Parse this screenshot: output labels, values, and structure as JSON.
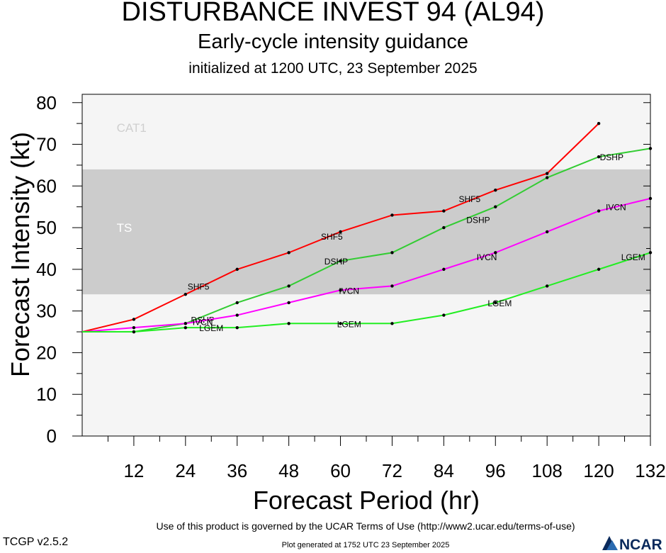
{
  "header": {
    "title": "DISTURBANCE INVEST 94 (AL94)",
    "subtitle": "Early-cycle intensity guidance",
    "initialized": "initialized at 1200 UTC, 23 September 2025"
  },
  "footer": {
    "terms": "Use of this product is governed by the UCAR Terms of Use (http://www2.ucar.edu/terms-of-use)",
    "version": "TCGP v2.5.2",
    "generated": "Plot generated at 1752 UTC   23 September 2025",
    "logo_text": "NCAR"
  },
  "chart_data": {
    "type": "line",
    "xlabel": "Forecast Period (hr)",
    "ylabel": "Forecast Intensity (kt)",
    "xlim": [
      0,
      132
    ],
    "ylim": [
      0,
      82
    ],
    "xticks": [
      12,
      24,
      36,
      48,
      60,
      72,
      84,
      96,
      108,
      120,
      132
    ],
    "yticks": [
      0,
      10,
      20,
      30,
      40,
      50,
      60,
      70,
      80
    ],
    "bands": [
      {
        "label": "TS",
        "from": 34,
        "to": 64,
        "color": "#cccccc",
        "label_x": 8,
        "label_y": 49
      },
      {
        "label": "CAT1",
        "from": 64,
        "to": 82,
        "color": "#f5f5f5",
        "label_x": 8,
        "label_y": 73
      }
    ],
    "below_band_color": "#f5f5f5",
    "series": [
      {
        "name": "SHF5",
        "color": "#ff0000",
        "x": [
          0,
          12,
          24,
          36,
          48,
          60,
          72,
          84,
          96,
          108,
          120
        ],
        "y": [
          25,
          28,
          34,
          40,
          44,
          49,
          53,
          54,
          59,
          63,
          75
        ],
        "labels": [
          {
            "x": 27,
            "y": 36
          },
          {
            "x": 58,
            "y": 48
          },
          {
            "x": 90,
            "y": 57
          }
        ]
      },
      {
        "name": "DSHP",
        "color": "#33cc33",
        "x": [
          0,
          12,
          24,
          36,
          48,
          60,
          72,
          84,
          96,
          108,
          120,
          132
        ],
        "y": [
          25,
          25,
          27,
          32,
          36,
          42,
          44,
          50,
          55,
          62,
          67,
          69
        ],
        "labels": [
          {
            "x": 28,
            "y": 28
          },
          {
            "x": 59,
            "y": 42
          },
          {
            "x": 92,
            "y": 52
          },
          {
            "x": 123,
            "y": 67
          }
        ]
      },
      {
        "name": "IVCN",
        "color": "#ff00ff",
        "x": [
          0,
          12,
          24,
          36,
          48,
          60,
          72,
          84,
          96,
          108,
          120,
          132
        ],
        "y": [
          25,
          26,
          27,
          29,
          32,
          35,
          36,
          40,
          44,
          49,
          54,
          57
        ],
        "labels": [
          {
            "x": 28,
            "y": 27.5
          },
          {
            "x": 62,
            "y": 35
          },
          {
            "x": 94,
            "y": 43
          },
          {
            "x": 124,
            "y": 55
          }
        ]
      },
      {
        "name": "LGEM",
        "color": "#22ee22",
        "x": [
          0,
          12,
          24,
          36,
          48,
          60,
          72,
          84,
          96,
          108,
          120,
          132
        ],
        "y": [
          25,
          25,
          26,
          26,
          27,
          27,
          27,
          29,
          32,
          36,
          40,
          44
        ],
        "labels": [
          {
            "x": 30,
            "y": 26
          },
          {
            "x": 62,
            "y": 27
          },
          {
            "x": 97,
            "y": 32
          },
          {
            "x": 128,
            "y": 43
          }
        ]
      }
    ]
  }
}
